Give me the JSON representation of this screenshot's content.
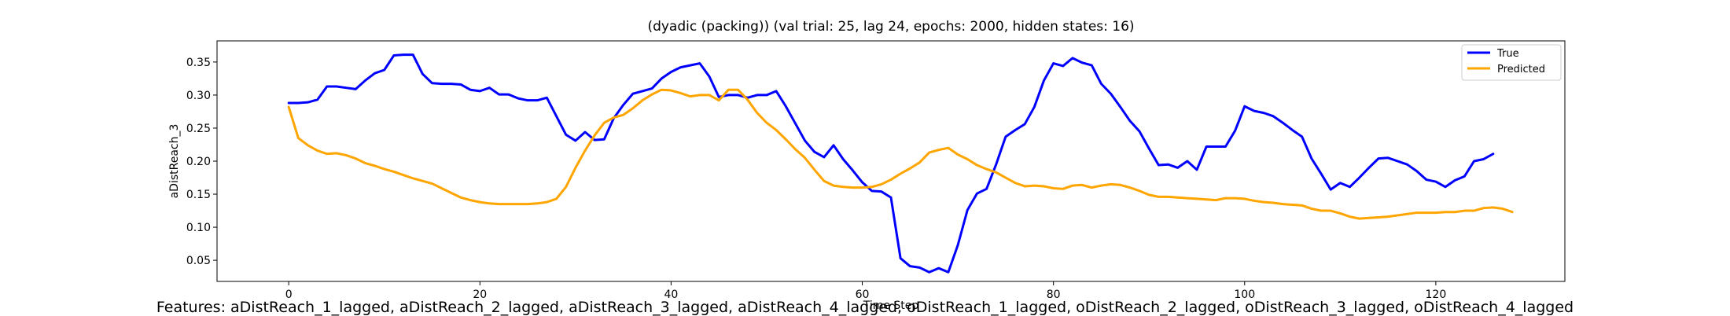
{
  "chart_data": {
    "type": "line",
    "title": "(dyadic (packing)) (val trial: 25, lag 24, epochs: 2000, hidden states: 16)",
    "xlabel": "Time Step",
    "ylabel": "aDistReach_3",
    "xlim": [
      -7.5,
      133.5
    ],
    "ylim": [
      0.018,
      0.382
    ],
    "x_ticks": [
      0,
      20,
      40,
      60,
      80,
      100,
      120
    ],
    "y_ticks": [
      0.05,
      0.1,
      0.15,
      0.2,
      0.25,
      0.3,
      0.35
    ],
    "x_tick_labels": [
      "0",
      "20",
      "40",
      "60",
      "80",
      "100",
      "120"
    ],
    "y_tick_labels": [
      "0.05",
      "0.10",
      "0.15",
      "0.20",
      "0.25",
      "0.30",
      "0.35"
    ],
    "legend_position": "top-right",
    "grid": false,
    "series": [
      {
        "name": "True",
        "color": "#0000ff",
        "values": [
          0.288,
          0.288,
          0.289,
          0.293,
          0.313,
          0.313,
          0.311,
          0.309,
          0.322,
          0.333,
          0.338,
          0.36,
          0.361,
          0.361,
          0.332,
          0.318,
          0.317,
          0.317,
          0.316,
          0.308,
          0.306,
          0.311,
          0.301,
          0.301,
          0.295,
          0.292,
          0.292,
          0.296,
          0.268,
          0.24,
          0.231,
          0.244,
          0.232,
          0.233,
          0.265,
          0.285,
          0.302,
          0.306,
          0.31,
          0.325,
          0.335,
          0.342,
          0.345,
          0.348,
          0.328,
          0.297,
          0.3,
          0.3,
          0.296,
          0.3,
          0.3,
          0.306,
          0.283,
          0.257,
          0.231,
          0.214,
          0.206,
          0.224,
          0.203,
          0.186,
          0.168,
          0.155,
          0.154,
          0.145,
          0.053,
          0.041,
          0.039,
          0.032,
          0.038,
          0.032,
          0.073,
          0.126,
          0.151,
          0.158,
          0.195,
          0.237,
          0.247,
          0.256,
          0.282,
          0.322,
          0.348,
          0.344,
          0.356,
          0.349,
          0.345,
          0.317,
          0.302,
          0.282,
          0.261,
          0.245,
          0.219,
          0.194,
          0.195,
          0.19,
          0.2,
          0.187,
          0.222,
          0.222,
          0.222,
          0.246,
          0.283,
          0.276,
          0.273,
          0.268,
          0.258,
          0.247,
          0.237,
          0.204,
          0.181,
          0.157,
          0.167,
          0.161,
          0.175,
          0.19,
          0.204,
          0.205,
          0.2,
          0.195,
          0.185,
          0.172,
          0.169,
          0.161,
          0.171,
          0.177,
          0.2,
          0.203,
          0.211
        ]
      },
      {
        "name": "Predicted",
        "color": "#ffa500",
        "values": [
          0.282,
          0.235,
          0.224,
          0.216,
          0.211,
          0.212,
          0.209,
          0.204,
          0.197,
          0.193,
          0.188,
          0.184,
          0.179,
          0.174,
          0.17,
          0.166,
          0.159,
          0.152,
          0.145,
          0.141,
          0.138,
          0.136,
          0.135,
          0.135,
          0.135,
          0.135,
          0.136,
          0.138,
          0.143,
          0.161,
          0.19,
          0.216,
          0.239,
          0.258,
          0.266,
          0.27,
          0.28,
          0.292,
          0.301,
          0.308,
          0.307,
          0.303,
          0.298,
          0.3,
          0.3,
          0.292,
          0.308,
          0.308,
          0.293,
          0.273,
          0.258,
          0.247,
          0.233,
          0.218,
          0.205,
          0.187,
          0.17,
          0.163,
          0.161,
          0.16,
          0.16,
          0.161,
          0.165,
          0.172,
          0.181,
          0.189,
          0.198,
          0.213,
          0.217,
          0.22,
          0.21,
          0.203,
          0.194,
          0.188,
          0.183,
          0.175,
          0.167,
          0.162,
          0.163,
          0.162,
          0.159,
          0.158,
          0.163,
          0.164,
          0.16,
          0.163,
          0.165,
          0.164,
          0.16,
          0.155,
          0.149,
          0.146,
          0.146,
          0.145,
          0.144,
          0.143,
          0.142,
          0.141,
          0.144,
          0.144,
          0.143,
          0.14,
          0.138,
          0.137,
          0.135,
          0.134,
          0.133,
          0.128,
          0.125,
          0.125,
          0.121,
          0.116,
          0.113,
          0.114,
          0.115,
          0.116,
          0.118,
          0.12,
          0.122,
          0.122,
          0.122,
          0.123,
          0.123,
          0.125,
          0.125,
          0.129,
          0.13,
          0.128,
          0.123
        ]
      }
    ]
  },
  "footer": {
    "features_text": "Features: aDistReach_1_lagged, aDistReach_2_lagged, aDistReach_3_lagged, aDistReach_4_lagged, oDistReach_1_lagged, oDistReach_2_lagged, oDistReach_3_lagged, oDistReach_4_lagged"
  }
}
